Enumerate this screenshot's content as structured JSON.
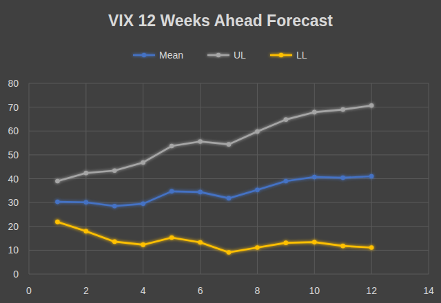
{
  "chart_data": {
    "type": "line",
    "title": "VIX 12 Weeks Ahead Forecast",
    "x": [
      1,
      2,
      3,
      4,
      5,
      6,
      7,
      8,
      9,
      10,
      11,
      12
    ],
    "series": [
      {
        "name": "Mean",
        "color": "#4472c4",
        "marker": "circle",
        "line_style": "solid",
        "values": [
          30.3,
          30.1,
          28.5,
          29.5,
          34.7,
          34.4,
          31.8,
          35.3,
          39.0,
          40.7,
          40.4,
          41.0
        ]
      },
      {
        "name": "UL",
        "color": "#a5a5a5",
        "marker": "circle",
        "line_style": "solid",
        "values": [
          39.0,
          42.4,
          43.4,
          46.8,
          53.7,
          55.6,
          54.4,
          59.8,
          64.8,
          67.9,
          69.0,
          70.7
        ]
      },
      {
        "name": "LL",
        "color": "#ffc000",
        "marker": "circle",
        "line_style": "solid",
        "values": [
          21.9,
          18.0,
          13.6,
          12.3,
          15.3,
          13.3,
          9.1,
          11.1,
          13.1,
          13.4,
          11.8,
          11.1
        ]
      }
    ],
    "xlim": [
      0,
      14
    ],
    "xticks": [
      0,
      2,
      4,
      6,
      8,
      10,
      12,
      14
    ],
    "ylim": [
      0,
      80
    ],
    "yticks": [
      0,
      10,
      20,
      30,
      40,
      50,
      60,
      70,
      80
    ],
    "grid": true,
    "legend": "top"
  }
}
